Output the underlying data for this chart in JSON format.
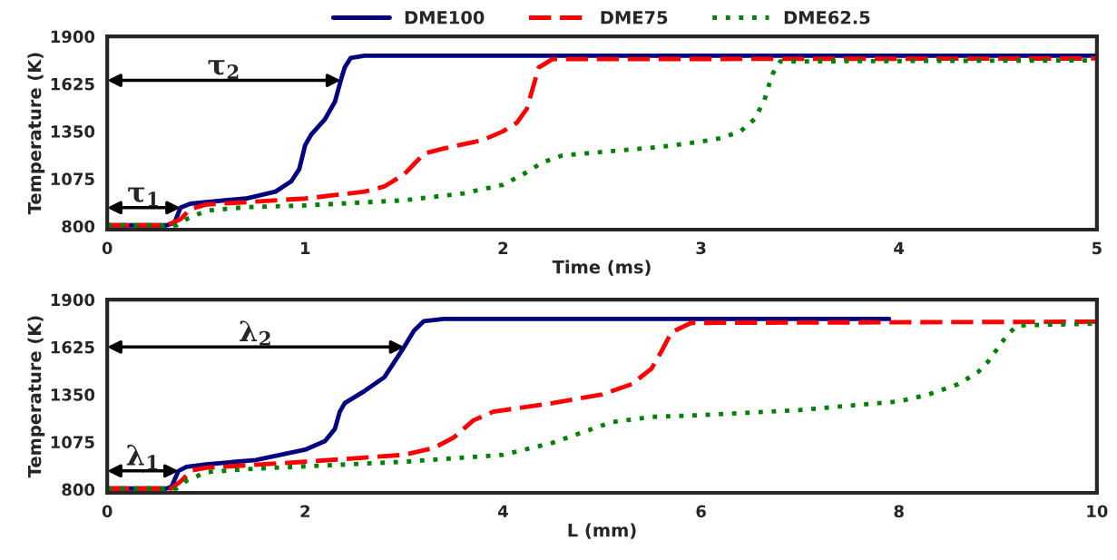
{
  "chart_data": [
    {
      "type": "line",
      "xlabel": "Time (ms)",
      "ylabel": "Temperature (K)",
      "xlim": [
        0,
        5
      ],
      "xticks": [
        0,
        1,
        2,
        3,
        4,
        5
      ],
      "ylim": [
        780,
        1900
      ],
      "yticks": [
        800,
        1075,
        1350,
        1625,
        1900
      ],
      "legend": "top",
      "grid": false,
      "series": [
        {
          "name": "DME100",
          "color": "#000080",
          "line_style": "solid",
          "x": [
            0,
            0.3,
            0.34,
            0.37,
            0.42,
            0.5,
            0.7,
            0.85,
            0.93,
            0.97,
            1.0,
            1.03,
            1.1,
            1.15,
            1.18,
            1.2,
            1.23,
            1.3,
            5
          ],
          "values": [
            805,
            805,
            820,
            907,
            930,
            940,
            960,
            1000,
            1060,
            1130,
            1270,
            1330,
            1420,
            1520,
            1645,
            1720,
            1775,
            1788,
            1788
          ]
        },
        {
          "name": "DME75",
          "color": "#ff0000",
          "line_style": "dashed",
          "x": [
            0,
            0.3,
            0.37,
            0.42,
            0.5,
            1.0,
            1.3,
            1.4,
            1.5,
            1.55,
            1.6,
            1.7,
            1.9,
            2.0,
            2.07,
            2.12,
            2.15,
            2.18,
            2.25,
            5
          ],
          "values": [
            805,
            805,
            840,
            900,
            925,
            960,
            1000,
            1030,
            1100,
            1160,
            1220,
            1250,
            1300,
            1350,
            1400,
            1480,
            1600,
            1720,
            1768,
            1772
          ]
        },
        {
          "name": "DME62.5",
          "color": "#008000",
          "line_style": "dotted",
          "x": [
            0,
            0.35,
            0.4,
            0.5,
            0.7,
            1.0,
            1.5,
            1.8,
            2.0,
            2.1,
            2.2,
            2.3,
            2.5,
            2.8,
            3.0,
            3.1,
            3.2,
            3.27,
            3.32,
            3.36,
            3.4,
            5
          ],
          "values": [
            805,
            805,
            840,
            890,
            910,
            920,
            950,
            990,
            1040,
            1100,
            1170,
            1210,
            1230,
            1260,
            1290,
            1310,
            1350,
            1420,
            1530,
            1680,
            1755,
            1761
          ]
        }
      ],
      "annotations": [
        {
          "text": "τ$_{1}$",
          "x": 0.37,
          "y": 907
        },
        {
          "text": "τ$_{2}$",
          "x": 1.18,
          "y": 1645
        }
      ]
    },
    {
      "type": "line",
      "xlabel": "L (mm)",
      "ylabel": "Temperature (K)",
      "xlim": [
        0,
        10
      ],
      "xticks": [
        0,
        2,
        4,
        6,
        8,
        10
      ],
      "ylim": [
        780,
        1900
      ],
      "yticks": [
        800,
        1075,
        1350,
        1625,
        1900
      ],
      "grid": false,
      "series": [
        {
          "color": "#000080",
          "line_style": "solid",
          "x": [
            0,
            0.6,
            0.65,
            0.72,
            0.8,
            1.0,
            1.5,
            2.0,
            2.2,
            2.3,
            2.35,
            2.4,
            2.6,
            2.8,
            3.0,
            3.1,
            3.2,
            3.4,
            7.9
          ],
          "values": [
            805,
            805,
            815,
            907,
            930,
            945,
            970,
            1030,
            1080,
            1150,
            1250,
            1300,
            1370,
            1450,
            1625,
            1720,
            1775,
            1788,
            1788
          ]
        },
        {
          "color": "#ff0000",
          "line_style": "dashed",
          "x": [
            0,
            0.65,
            0.75,
            0.85,
            1.0,
            2.0,
            3.0,
            3.3,
            3.5,
            3.7,
            3.9,
            4.5,
            5.0,
            5.3,
            5.5,
            5.6,
            5.7,
            5.9,
            10
          ],
          "values": [
            805,
            805,
            850,
            910,
            925,
            960,
            1000,
            1040,
            1100,
            1200,
            1250,
            1300,
            1350,
            1410,
            1500,
            1600,
            1710,
            1765,
            1772
          ]
        },
        {
          "color": "#008000",
          "line_style": "dotted",
          "x": [
            0,
            0.7,
            0.8,
            1.0,
            1.5,
            3.0,
            4.0,
            4.5,
            4.8,
            5.1,
            5.5,
            6.0,
            7.0,
            8.0,
            8.3,
            8.6,
            8.8,
            8.9,
            9.0,
            9.1,
            9.2,
            10
          ],
          "values": [
            805,
            805,
            850,
            900,
            920,
            960,
            1000,
            1070,
            1130,
            1190,
            1220,
            1230,
            1260,
            1310,
            1350,
            1410,
            1480,
            1540,
            1620,
            1700,
            1750,
            1761
          ]
        }
      ],
      "annotations": [
        {
          "text": "λ$_{1}$",
          "x": 0.72,
          "y": 907
        },
        {
          "text": "λ$_{2}$",
          "x": 3.0,
          "y": 1625
        }
      ]
    }
  ]
}
